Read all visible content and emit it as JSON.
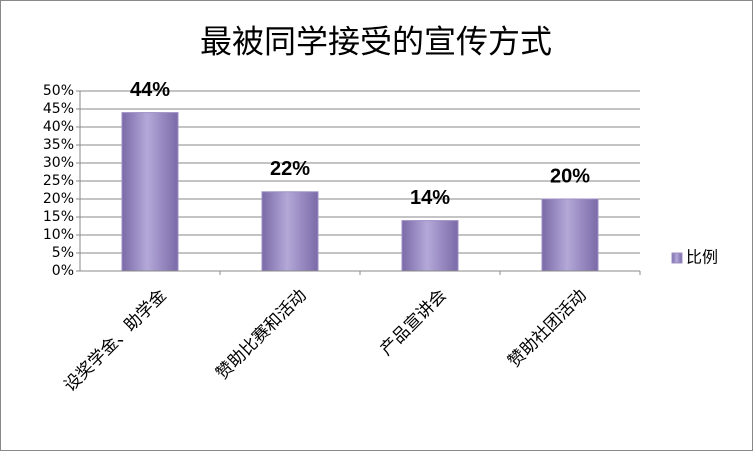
{
  "chart_data": {
    "type": "bar",
    "title": "最被同学接受的宣传方式",
    "categories": [
      "设奖学金、助学金",
      "赞助比赛和活动",
      "产品宣讲会",
      "赞助社团活动"
    ],
    "series": [
      {
        "name": "比例",
        "color": "#9c8ec4",
        "values": [
          44,
          22,
          14,
          20
        ],
        "value_labels": [
          "44%",
          "22%",
          "14%",
          "20%"
        ]
      }
    ],
    "ylim": [
      0,
      50
    ],
    "yticks": [
      {
        "value": 0,
        "label": "0%"
      },
      {
        "value": 5,
        "label": "5%"
      },
      {
        "value": 10,
        "label": "10%"
      },
      {
        "value": 15,
        "label": "15%"
      },
      {
        "value": 20,
        "label": "20%"
      },
      {
        "value": 25,
        "label": "25%"
      },
      {
        "value": 30,
        "label": "30%"
      },
      {
        "value": 35,
        "label": "35%"
      },
      {
        "value": 40,
        "label": "40%"
      },
      {
        "value": 45,
        "label": "45%"
      },
      {
        "value": 50,
        "label": "50%"
      }
    ],
    "grid": true,
    "legend": "right"
  }
}
